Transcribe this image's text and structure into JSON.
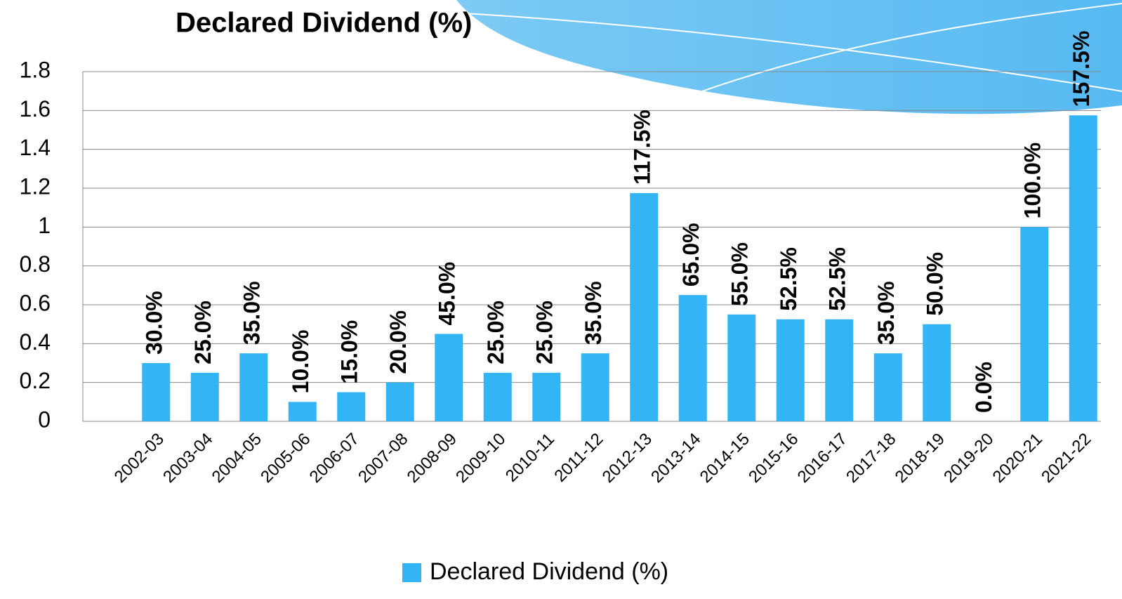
{
  "chart_data": {
    "type": "bar",
    "title": "Declared Dividend (%)",
    "categories": [
      "2002-03",
      "2003-04",
      "2004-05",
      "2005-06",
      "2006-07",
      "2007-08",
      "2008-09",
      "2009-10",
      "2010-11",
      "2011-12",
      "2012-13",
      "2013-14",
      "2014-15",
      "2015-16",
      "2016-17",
      "2017-18",
      "2018-19",
      "2019-20",
      "2020-21",
      "2021-22"
    ],
    "series": [
      {
        "name": "Declared Dividend (%)",
        "color": "#33b4f5",
        "values": [
          0.3,
          0.25,
          0.35,
          0.1,
          0.15,
          0.2,
          0.45,
          0.25,
          0.25,
          0.35,
          1.175,
          0.65,
          0.55,
          0.525,
          0.525,
          0.35,
          0.5,
          0,
          1.0,
          1.575
        ],
        "value_labels": [
          "30.0%",
          "25.0%",
          "35.0%",
          "10.0%",
          "15.0%",
          "20.0%",
          "45.0%",
          "25.0%",
          "25.0%",
          "35.0%",
          "117.5%",
          "65.0%",
          "55.0%",
          "52.5%",
          "52.5%",
          "35.0%",
          "50.0%",
          "0.0%",
          "100.0%",
          "157.5%"
        ]
      }
    ],
    "ylim": [
      0,
      1.8
    ],
    "yticks": [
      0,
      0.2,
      0.4,
      0.6,
      0.8,
      1,
      1.2,
      1.4,
      1.6,
      1.8
    ],
    "grid": true,
    "legend": "bottom"
  }
}
